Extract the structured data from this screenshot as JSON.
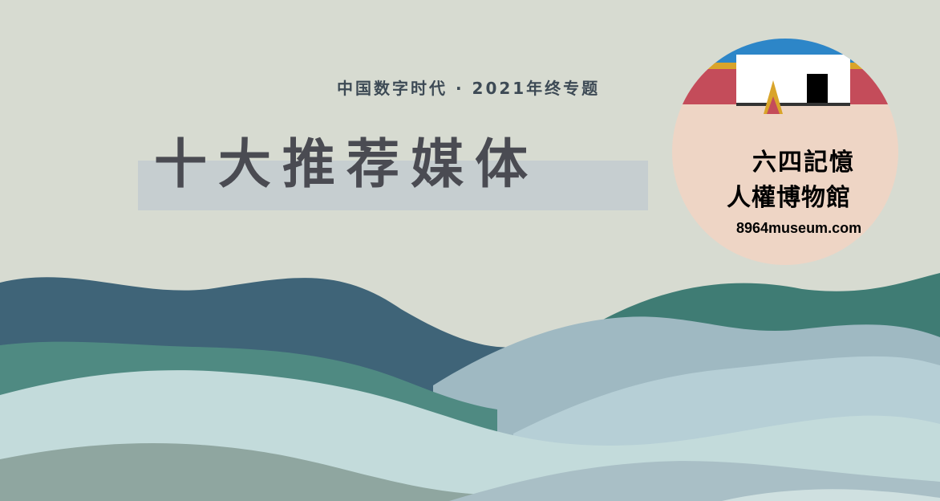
{
  "header": {
    "subtitle": "中国数字时代 · 2021年终专题",
    "title": "十大推荐媒体"
  },
  "badge": {
    "line1": "六四記憶",
    "line2": "人權博物館",
    "url": "8964museum.com"
  },
  "colors": {
    "background": "#d7dbd1",
    "title_text": "#4a4b52",
    "title_band": "#c6ced0",
    "subtitle_text": "#3d4a55",
    "wave_navy": "#3f6478",
    "wave_green": "#4f8a82",
    "wave_light": "#c3dbdb",
    "badge_peach": "#eed5c5",
    "badge_blue": "#2d86c8",
    "badge_red": "#c44c5a",
    "badge_gold": "#d9a42a"
  }
}
